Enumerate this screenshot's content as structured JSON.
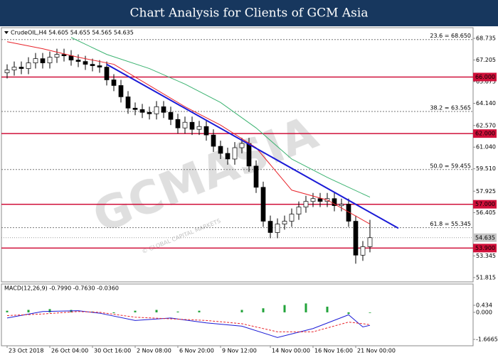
{
  "title": "Chart Analysis for Clients of GCM Asia",
  "chart_data": {
    "type": "candlestick",
    "header": "CrudeOIL,H4  54.605 54.655 54.565 54.635",
    "watermark": "GCMASIA",
    "watermark_sub": "© GLOBAL CAPITAL MARKETS",
    "up_color": "#ffffff",
    "down_color": "#000000",
    "xlim": [
      -0.8,
      65.5
    ],
    "xticks": [
      {
        "value": 0,
        "label": "23 Oct 2018"
      },
      {
        "value": 6,
        "label": "26 Oct 04:00"
      },
      {
        "value": 12,
        "label": "30 Oct 16:00"
      },
      {
        "value": 18,
        "label": "2 Nov 08:00"
      },
      {
        "value": 24,
        "label": "6 Nov 20:00"
      },
      {
        "value": 30,
        "label": "9 Nov 12:00"
      },
      {
        "value": 37,
        "label": "14 Nov 00:00"
      },
      {
        "value": 43,
        "label": "16 Nov 16:00"
      },
      {
        "value": 49,
        "label": "21 Nov 00:00"
      }
    ],
    "ylim": [
      51.51,
      69.49
    ],
    "yticks": [
      68.735,
      67.205,
      65.675,
      {
        "value": 64.14,
        "label": "64.140"
      },
      {
        "value": 62.57,
        "label": "62.570"
      },
      {
        "value": 61.04,
        "label": "61.040"
      },
      {
        "value": 59.51,
        "label": "59.510"
      },
      57.925,
      56.405,
      53.345,
      51.815
    ],
    "open": [
      66.3,
      66.5,
      66.7,
      66.6,
      67.0,
      67.3,
      67.0,
      67.4,
      67.6,
      67.5,
      67.2,
      67.1,
      66.9,
      66.8,
      66.7,
      65.8,
      65.4,
      64.6,
      63.8,
      63.7,
      63.5,
      63.4,
      63.9,
      63.5,
      63.0,
      62.4,
      62.8,
      62.3,
      62.5,
      61.9,
      61.1,
      60.6,
      60.2,
      61.0,
      61.3,
      59.7,
      58.2,
      55.8,
      55.0,
      55.6,
      55.8,
      56.3,
      56.8,
      57.2,
      57.4,
      57.2,
      57.4,
      56.9,
      57.0,
      55.8,
      53.4,
      54.0
    ],
    "high": [
      66.9,
      67.1,
      67.1,
      67.4,
      67.7,
      67.7,
      67.8,
      68.0,
      68.0,
      67.9,
      67.6,
      67.5,
      67.3,
      67.2,
      67.1,
      66.2,
      65.8,
      65.0,
      64.2,
      64.1,
      63.9,
      64.3,
      64.3,
      63.9,
      63.4,
      63.2,
      63.2,
      62.9,
      62.9,
      62.3,
      61.5,
      61.0,
      61.4,
      61.7,
      61.7,
      60.1,
      58.6,
      56.2,
      56.0,
      56.2,
      56.7,
      57.2,
      57.6,
      57.8,
      57.8,
      57.8,
      57.8,
      57.4,
      57.4,
      56.2,
      54.4,
      55.9
    ],
    "low": [
      65.9,
      66.1,
      66.2,
      66.2,
      66.6,
      66.6,
      66.6,
      67.0,
      67.1,
      66.8,
      66.7,
      66.5,
      66.4,
      66.3,
      65.4,
      65.0,
      64.2,
      63.4,
      63.3,
      63.1,
      63.0,
      63.0,
      63.1,
      62.6,
      62.0,
      62.0,
      61.9,
      61.9,
      61.5,
      60.7,
      60.2,
      59.8,
      59.8,
      60.6,
      59.3,
      57.8,
      55.4,
      54.6,
      54.6,
      55.2,
      55.4,
      55.9,
      56.4,
      56.8,
      56.8,
      56.8,
      56.5,
      56.5,
      55.4,
      52.8,
      53.0,
      53.6
    ],
    "close": [
      66.5,
      66.7,
      66.6,
      67.0,
      67.3,
      67.0,
      67.4,
      67.6,
      67.5,
      67.2,
      67.1,
      66.9,
      66.8,
      66.7,
      65.8,
      65.4,
      64.6,
      63.8,
      63.7,
      63.5,
      63.4,
      63.9,
      63.5,
      63.0,
      62.4,
      62.8,
      62.3,
      62.5,
      61.9,
      61.1,
      60.6,
      60.2,
      61.0,
      61.3,
      59.7,
      58.2,
      55.8,
      55.0,
      55.6,
      55.8,
      56.3,
      56.8,
      57.2,
      57.4,
      57.2,
      57.4,
      56.9,
      57.0,
      55.8,
      53.4,
      54.0,
      54.635
    ],
    "lines": [
      {
        "color": "#e8232a",
        "width": 1,
        "x": [
          0,
          5,
          10,
          15,
          20,
          25,
          30,
          35,
          40,
          45,
          51
        ],
        "values": [
          68.5,
          68.0,
          67.4,
          66.9,
          65.4,
          63.9,
          62.6,
          61.0,
          58.0,
          57.3,
          55.6
        ]
      },
      {
        "color": "#3cb371",
        "width": 1,
        "x": [
          9,
          14,
          20,
          25,
          30,
          35,
          40,
          45,
          51
        ],
        "values": [
          68.8,
          67.6,
          66.6,
          65.5,
          64.2,
          62.4,
          60.2,
          58.9,
          57.5
        ]
      },
      {
        "color": "#1a1ad6",
        "width": 2,
        "x": [
          14,
          55
        ],
        "values": [
          66.9,
          55.3
        ]
      }
    ],
    "levels": [
      {
        "value": 66,
        "label": "66.000"
      },
      {
        "value": 62,
        "label": "62.000"
      },
      {
        "value": 57,
        "label": "57.000"
      },
      {
        "value": 53.9,
        "label": "53.900"
      }
    ],
    "level_color": "#d0103a",
    "fib": [
      {
        "value": 68.65,
        "label": "23.6 = 68.650"
      },
      {
        "value": 63.565,
        "label": "38.2 = 63.565"
      },
      {
        "value": 59.455,
        "label": "50.0 = 59.455"
      },
      {
        "value": 55.345,
        "label": "61.8 = 55.345"
      }
    ],
    "price": 54.635,
    "macd_header": "MACD(12,26,9) -0.7990 -0.7630 -0.0360",
    "y2lim": [
      -2.06,
      1.747
    ],
    "y2ticks": [
      0.434,
      {
        "value": 0,
        "label": "0.000"
      },
      -1.6665
    ],
    "hist_x": [
      0,
      3,
      6,
      9,
      12,
      15,
      18,
      21,
      24,
      27,
      30,
      33,
      36,
      39,
      42,
      45,
      48,
      51
    ],
    "histogram": [
      0.1,
      0.15,
      0.2,
      0.15,
      0.05,
      -0.05,
      0.1,
      0.15,
      0.05,
      0.1,
      0.0,
      0.15,
      0.25,
      0.45,
      0.55,
      0.35,
      -0.1,
      -0.036
    ],
    "hist_color": "#22a33a",
    "macd_x": [
      0,
      5,
      10,
      13,
      18,
      23,
      28,
      33,
      38,
      43,
      48,
      50,
      51
    ],
    "macd": [
      -0.35,
      0.05,
      0.1,
      -0.05,
      -0.5,
      -0.35,
      -0.65,
      -0.85,
      -1.55,
      -1.0,
      -0.15,
      -0.9,
      -0.799
    ],
    "signal": [
      -0.2,
      -0.1,
      0.05,
      0.0,
      -0.3,
      -0.4,
      -0.5,
      -0.7,
      -1.2,
      -1.2,
      -0.6,
      -0.7,
      -0.763
    ],
    "macd_color": "#1a1ad6",
    "signal_color": "#e8232a"
  }
}
